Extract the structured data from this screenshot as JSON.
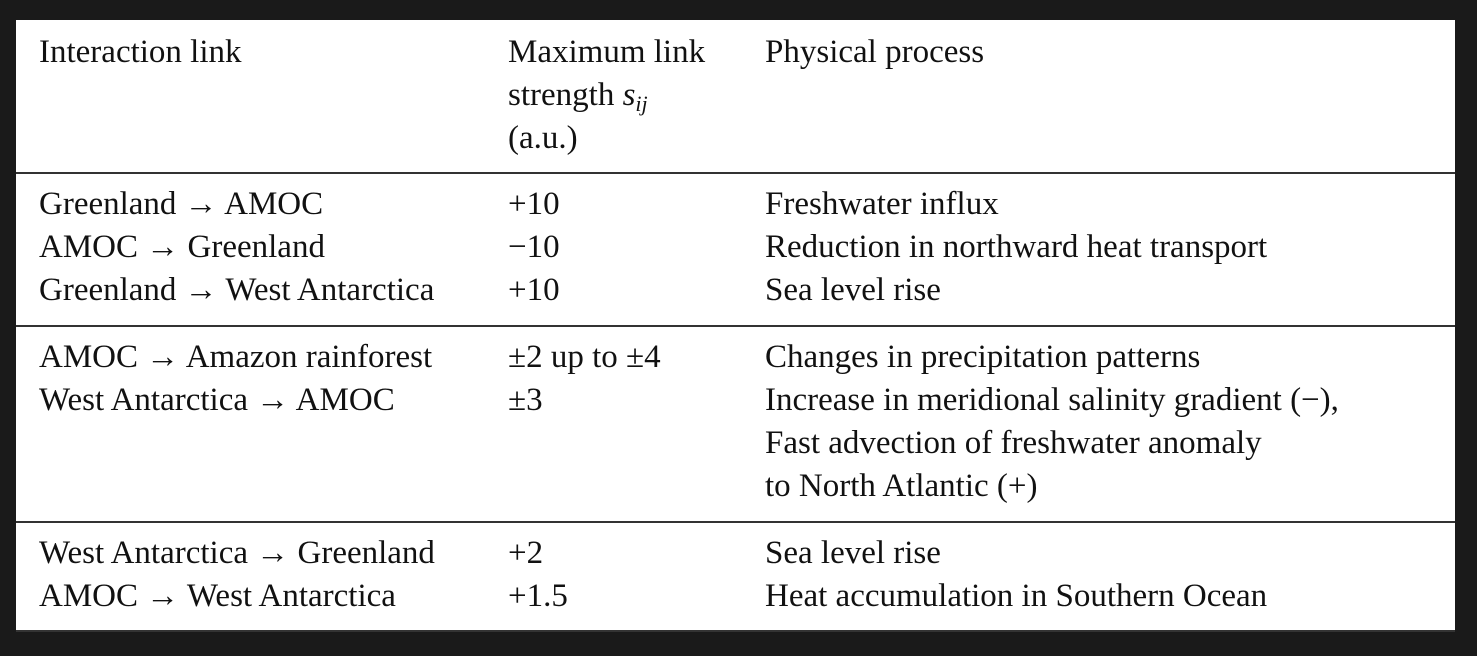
{
  "header": {
    "col1": "Interaction link",
    "col2_line1": "Maximum link",
    "col2_line2_prefix": "strength ",
    "col2_symbol": "s",
    "col2_subscript": "ij",
    "col2_line3": "(a.u.)",
    "col3": "Physical process"
  },
  "groups": [
    {
      "rows": [
        {
          "link": "Greenland → AMOC",
          "strength": "+10",
          "process": [
            "Freshwater influx"
          ]
        },
        {
          "link": "AMOC → Greenland",
          "strength": "−10",
          "process": [
            "Reduction in northward heat transport"
          ]
        },
        {
          "link": "Greenland → West Antarctica",
          "strength": "+10",
          "process": [
            "Sea level rise"
          ]
        }
      ]
    },
    {
      "rows": [
        {
          "link": "AMOC → Amazon rainforest",
          "strength": "±2 up to ±4",
          "process": [
            "Changes in precipitation patterns"
          ]
        },
        {
          "link": "West Antarctica → AMOC",
          "strength": "±3",
          "process": [
            "Increase in meridional salinity gradient (−),",
            "Fast advection of freshwater anomaly",
            "to North Atlantic (+)"
          ]
        }
      ]
    },
    {
      "rows": [
        {
          "link": "West Antarctica → Greenland",
          "strength": "+2",
          "process": [
            "Sea level rise"
          ]
        },
        {
          "link": "AMOC → West Antarctica",
          "strength": "+1.5",
          "process": [
            "Heat accumulation in Southern Ocean"
          ]
        }
      ]
    }
  ]
}
